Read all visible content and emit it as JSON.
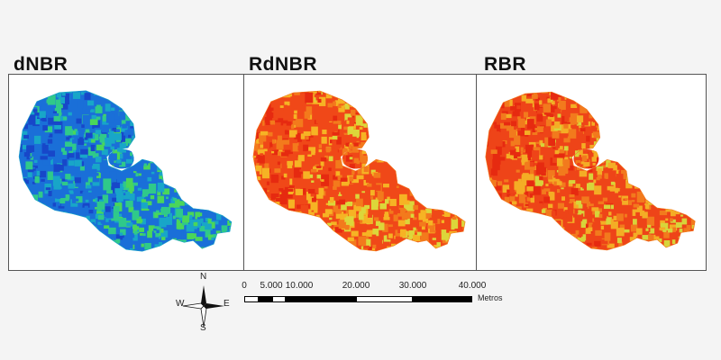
{
  "panels": [
    {
      "title": "dNBR",
      "colors": [
        "#1747c9",
        "#1a6fd8",
        "#18a6c8",
        "#2fc98a",
        "#4ad65a"
      ]
    },
    {
      "title": "RdNBR",
      "colors": [
        "#e62a10",
        "#f04818",
        "#f37a1c",
        "#f6b324",
        "#dcd63a"
      ]
    },
    {
      "title": "RBR",
      "colors": [
        "#e62a10",
        "#ee4418",
        "#f27a1d",
        "#f4ad25",
        "#d7d43a"
      ]
    }
  ],
  "compass": {
    "n": "N",
    "s": "S",
    "e": "E",
    "w": "W"
  },
  "scale": {
    "ticks": [
      "0",
      "5.000",
      "10.000",
      "20.000",
      "30.000",
      "40.000"
    ],
    "unit": "Metros"
  }
}
